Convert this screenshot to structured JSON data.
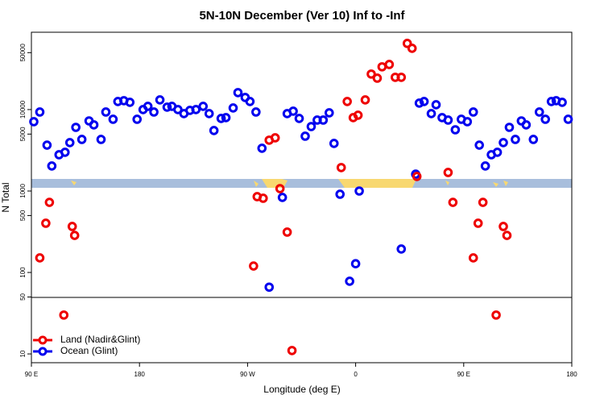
{
  "chart_data": {
    "type": "scatter",
    "title": "5N-10N December (Ver 10)   Inf to -Inf",
    "x_label": "Longitude (deg E)",
    "y_label": "N Total",
    "xlim": [
      90,
      540
    ],
    "xticks": [
      {
        "value": 90,
        "label": "90 E"
      },
      180,
      {
        "value": 270,
        "label": "90 W"
      },
      {
        "value": 360,
        "label": "0"
      },
      {
        "value": 450,
        "label": "90 E"
      },
      {
        "value": 540,
        "label": "180"
      }
    ],
    "ylim": [
      7.8,
      89000
    ],
    "yticks": [
      10,
      50,
      100,
      500,
      1000,
      5000,
      10000,
      50000
    ],
    "y_log": true,
    "legend": "lower left",
    "series": [
      {
        "name": "Ocean (Glint)",
        "color": "#0000ee",
        "x": [
          92,
          97,
          103,
          107,
          113,
          118,
          122,
          127,
          132,
          138,
          142,
          148,
          152,
          158,
          162,
          167,
          172,
          178,
          183,
          187,
          192,
          197,
          203,
          207,
          212,
          217,
          222,
          227,
          233,
          238,
          242,
          248,
          252,
          258,
          262,
          268,
          272,
          277,
          282,
          288,
          299,
          303,
          308,
          313,
          318,
          323,
          328,
          333,
          338,
          342,
          347,
          355,
          360,
          363,
          398,
          410,
          413,
          417,
          423,
          427,
          432,
          437,
          443,
          448,
          453,
          458,
          463,
          468,
          473,
          478,
          483,
          488,
          493,
          498,
          502,
          508,
          513,
          518,
          523,
          527,
          532,
          537
        ],
        "values": [
          7100,
          9330,
          3660,
          2030,
          2790,
          2990,
          3930,
          6050,
          4300,
          7260,
          6490,
          4300,
          9330,
          7600,
          12560,
          12850,
          12280,
          7600,
          10000,
          10960,
          9330,
          13150,
          10710,
          10960,
          10000,
          8920,
          9770,
          10000,
          10960,
          8920,
          5530,
          7780,
          7960,
          10470,
          16150,
          14090,
          12560,
          9330,
          3350,
          66,
          834,
          8920,
          9550,
          7780,
          4710,
          6190,
          7430,
          7430,
          9120,
          3840,
          913,
          78,
          128,
          1000,
          194,
          1610,
          12000,
          12560,
          8920,
          11460,
          7960,
          7430,
          5650,
          7600,
          7100,
          9330,
          3660,
          2030,
          2790,
          2990,
          3930,
          6050,
          4300,
          7260,
          6490,
          4300,
          9330,
          7600,
          12560,
          12850,
          12280,
          7600
        ]
      },
      {
        "name": "Land (Nadir&Glint)",
        "color": "#ee0000",
        "x": [
          97,
          102,
          105,
          117,
          124,
          126,
          275,
          278,
          283,
          288,
          293,
          297,
          303,
          307,
          348,
          353,
          358,
          362,
          368,
          373,
          378,
          382,
          388,
          393,
          398,
          403,
          407,
          411,
          437,
          441,
          458,
          462,
          466,
          477,
          483,
          486
        ],
        "values": [
          151,
          402,
          726,
          30,
          367,
          285,
          120,
          853,
          815,
          4210,
          4500,
          1070,
          313,
          11,
          1940,
          12560,
          7960,
          8530,
          13150,
          27300,
          24300,
          33500,
          35800,
          24900,
          24900,
          64900,
          56500,
          1510,
          1690,
          726,
          151,
          402,
          726,
          30,
          367,
          285
        ]
      }
    ]
  }
}
